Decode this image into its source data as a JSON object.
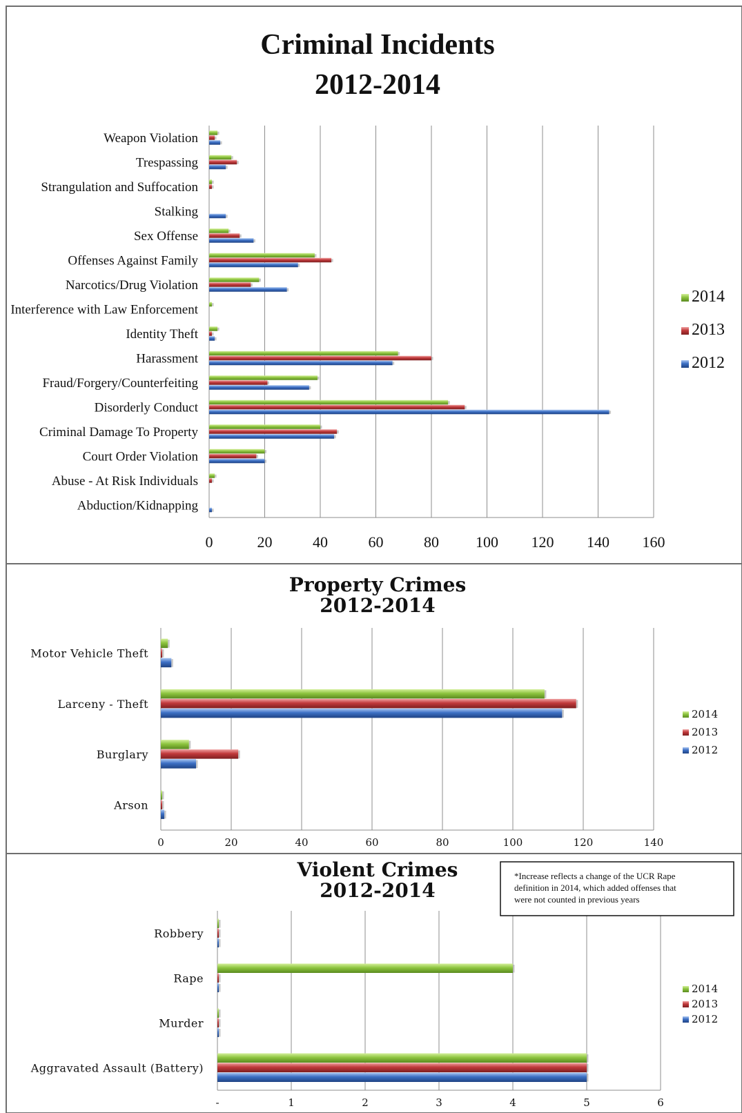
{
  "colors": {
    "2014": "#8dc43f",
    "2013": "#c0393b",
    "2012": "#3c6fc4",
    "grid": "#8c8c8c",
    "border": "#6e6e6e"
  },
  "chart_data": [
    {
      "type": "bar",
      "orientation": "horizontal",
      "title": "Criminal Incidents",
      "subtitle": "2012-2014",
      "categories": [
        "Weapon Violation",
        "Trespassing",
        "Strangulation and Suffocation",
        "Stalking",
        "Sex Offense",
        "Offenses Against Family",
        "Narcotics/Drug Violation",
        "Interference with Law Enforcement",
        "Identity Theft",
        "Harassment",
        "Fraud/Forgery/Counterfeiting",
        "Disorderly Conduct",
        "Criminal Damage To Property",
        "Court Order Violation",
        "Abuse - At Risk Individuals",
        "Abduction/Kidnapping"
      ],
      "series": [
        {
          "name": "2014",
          "values": [
            3,
            8,
            1,
            0,
            7,
            38,
            18,
            1,
            3,
            68,
            39,
            86,
            40,
            20,
            2,
            0
          ]
        },
        {
          "name": "2013",
          "values": [
            2,
            10,
            1,
            0,
            11,
            44,
            15,
            0,
            1,
            80,
            21,
            92,
            46,
            17,
            1,
            0
          ]
        },
        {
          "name": "2012",
          "values": [
            4,
            6,
            0,
            6,
            16,
            32,
            28,
            0,
            2,
            66,
            36,
            144,
            45,
            20,
            0,
            1
          ]
        }
      ],
      "xlim": [
        0,
        160
      ],
      "xticks": [
        "0",
        "20",
        "40",
        "60",
        "80",
        "100",
        "120",
        "140",
        "160"
      ],
      "legend": "right",
      "grid": true
    },
    {
      "type": "bar",
      "orientation": "horizontal",
      "title": "Property Crimes",
      "subtitle": "2012-2014",
      "categories": [
        "Motor Vehicle Theft",
        "Larceny - Theft",
        "Burglary",
        "Arson"
      ],
      "series": [
        {
          "name": "2014",
          "values": [
            2,
            109,
            8,
            0
          ]
        },
        {
          "name": "2013",
          "values": [
            0,
            118,
            22,
            0
          ]
        },
        {
          "name": "2012",
          "values": [
            3,
            114,
            10,
            1
          ]
        }
      ],
      "xlim": [
        0,
        140
      ],
      "xticks": [
        "0",
        "20",
        "40",
        "60",
        "80",
        "100",
        "120",
        "140"
      ],
      "legend": "right",
      "grid": true
    },
    {
      "type": "bar",
      "orientation": "horizontal",
      "title": "Violent Crimes",
      "subtitle": "2012-2014",
      "note": "*Increase reflects a change of the UCR Rape definition in 2014, which added offenses that were not counted in previous years",
      "categories": [
        "Robbery",
        "Rape",
        "Murder",
        "Aggravated Assault (Battery)"
      ],
      "series": [
        {
          "name": "2014",
          "values": [
            0,
            4,
            0,
            5
          ]
        },
        {
          "name": "2013",
          "values": [
            0,
            0,
            0,
            5
          ]
        },
        {
          "name": "2012",
          "values": [
            0,
            0,
            0,
            5
          ]
        }
      ],
      "xlim": [
        0,
        6
      ],
      "xticks": [
        "-",
        "1",
        "2",
        "3",
        "4",
        "5",
        "6"
      ],
      "legend": "right",
      "grid": true
    }
  ]
}
